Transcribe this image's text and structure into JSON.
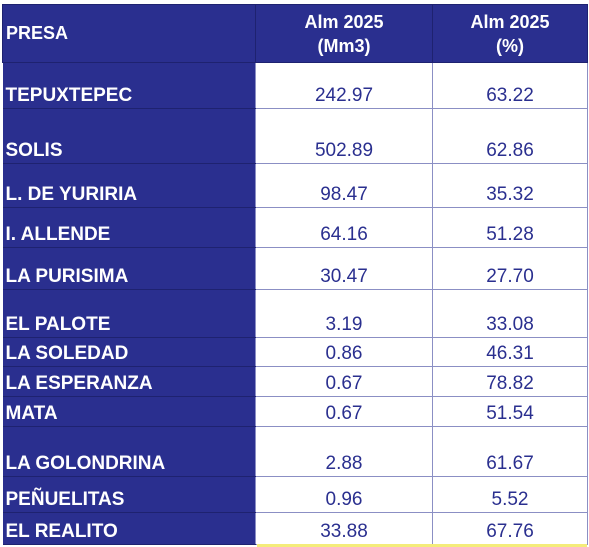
{
  "header": {
    "col1": "PRESA",
    "col2_line1": "Alm 2025",
    "col2_line2": "(Mm3)",
    "col3_line1": "Alm 2025",
    "col3_line2": "(%)"
  },
  "rows": [
    {
      "name": "TEPUXTEPEC",
      "mm3": "242.97",
      "pct": "63.22"
    },
    {
      "name": "SOLIS",
      "mm3": "502.89",
      "pct": "62.86"
    },
    {
      "name": "L. DE YURIRIA",
      "mm3": "98.47",
      "pct": "35.32"
    },
    {
      "name": "I. ALLENDE",
      "mm3": "64.16",
      "pct": "51.28"
    },
    {
      "name": "LA PURISIMA",
      "mm3": "30.47",
      "pct": "27.70"
    },
    {
      "name": "EL PALOTE",
      "mm3": "3.19",
      "pct": "33.08"
    },
    {
      "name": "LA SOLEDAD",
      "mm3": "0.86",
      "pct": "46.31"
    },
    {
      "name": "LA ESPERANZA",
      "mm3": "0.67",
      "pct": "78.82"
    },
    {
      "name": "MATA",
      "mm3": "0.67",
      "pct": "51.54"
    },
    {
      "name": "LA GOLONDRINA",
      "mm3": "2.88",
      "pct": "61.67"
    },
    {
      "name": "PEÑUELITAS",
      "mm3": "0.96",
      "pct": "5.52"
    },
    {
      "name": "EL REALITO",
      "mm3": "33.88",
      "pct": "67.76"
    }
  ]
}
